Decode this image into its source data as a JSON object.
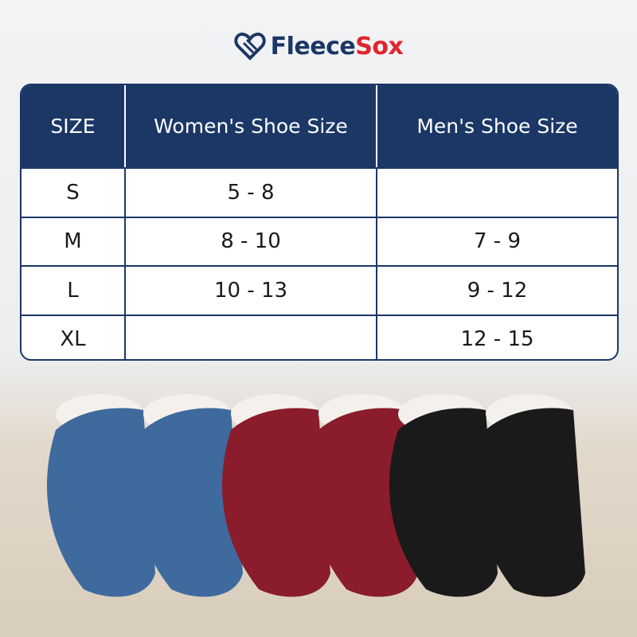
{
  "brand": {
    "part1": "Fleece",
    "part2": "Sox",
    "colors": {
      "primary": "#1b3766",
      "accent": "#e0252c"
    }
  },
  "table": {
    "headers": [
      "SIZE",
      "Women's Shoe Size",
      "Men's Shoe Size"
    ],
    "rows": [
      [
        "S",
        "5 - 8",
        ""
      ],
      [
        "M",
        "8 - 10",
        "7 - 9"
      ],
      [
        "L",
        "10 - 13",
        "9 - 12"
      ],
      [
        "XL",
        "",
        "12 - 15"
      ]
    ]
  },
  "product_colors": [
    "#3f6a9e",
    "#8a1c2c",
    "#1a1a1a"
  ]
}
